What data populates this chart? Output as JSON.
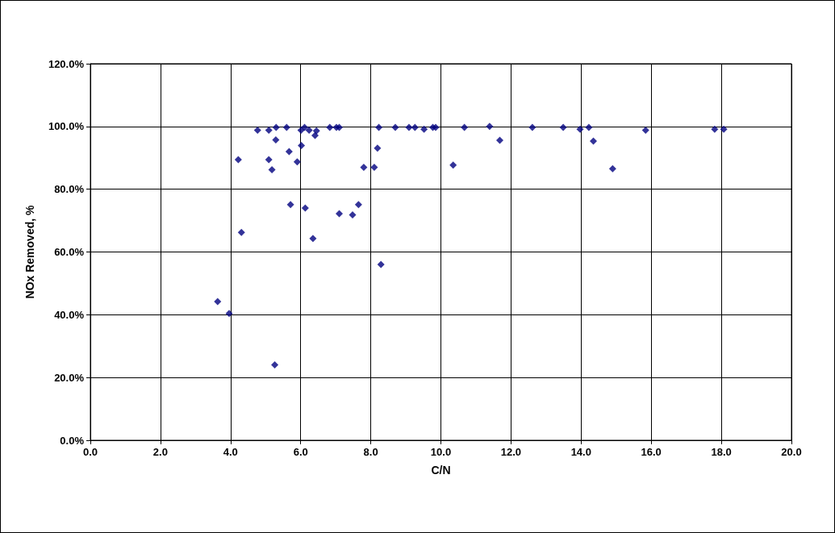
{
  "chart_data": {
    "type": "scatter",
    "xlabel": "C/N",
    "ylabel": "NOx Removed, %",
    "marker": "diamond",
    "grid": true,
    "xlim": [
      0,
      20
    ],
    "ylim": [
      0,
      120
    ],
    "xticks": [
      {
        "value": 0,
        "label": "0.0"
      },
      {
        "value": 2,
        "label": "2.0"
      },
      {
        "value": 4,
        "label": "4.0"
      },
      {
        "value": 6,
        "label": "6.0"
      },
      {
        "value": 8,
        "label": "8.0"
      },
      {
        "value": 10,
        "label": "10.0"
      },
      {
        "value": 12,
        "label": "12.0"
      },
      {
        "value": 14,
        "label": "14.0"
      },
      {
        "value": 16,
        "label": "16.0"
      },
      {
        "value": 18,
        "label": "18.0"
      },
      {
        "value": 20,
        "label": "20.0"
      }
    ],
    "yticks": [
      {
        "value": 0,
        "label": "0.0%"
      },
      {
        "value": 20,
        "label": "20.0%"
      },
      {
        "value": 40,
        "label": "40.0%"
      },
      {
        "value": 60,
        "label": "60.0%"
      },
      {
        "value": 80,
        "label": "80.0%"
      },
      {
        "value": 100,
        "label": "100.0%"
      },
      {
        "value": 120,
        "label": "120.0%"
      }
    ],
    "series": [
      {
        "color": "#000080",
        "x": [
          4.77,
          5.09,
          5.3,
          5.6,
          6.01,
          6.11,
          6.24,
          6.45,
          6.41,
          6.83,
          7.02,
          7.1,
          8.23,
          5.29,
          6.02,
          5.67,
          4.22,
          5.09,
          5.9,
          5.18,
          8.19,
          7.8,
          8.1,
          5.71,
          6.13,
          7.1,
          7.48,
          7.65,
          4.31,
          6.35,
          8.29,
          3.63,
          3.96,
          5.26,
          8.7,
          9.09,
          9.26,
          9.52,
          9.77,
          9.85,
          10.67,
          11.39,
          11.68,
          10.35,
          12.61,
          13.49,
          13.97,
          14.22,
          14.35,
          14.9,
          15.84,
          17.81,
          18.07
        ],
        "values": [
          98.8,
          98.8,
          99.7,
          99.7,
          98.8,
          99.7,
          98.8,
          98.6,
          97.1,
          99.7,
          99.7,
          99.7,
          99.7,
          95.7,
          93.9,
          92.0,
          89.4,
          89.4,
          88.7,
          86.2,
          93.1,
          87.0,
          87.0,
          75.1,
          74.0,
          72.2,
          71.8,
          75.1,
          66.2,
          64.3,
          56.0,
          44.2,
          40.4,
          24.0,
          99.7,
          99.7,
          99.7,
          99.1,
          99.7,
          99.7,
          99.7,
          100.0,
          95.6,
          87.7,
          99.7,
          99.7,
          99.1,
          99.7,
          95.3,
          86.5,
          98.8,
          99.1,
          99.1
        ]
      }
    ]
  }
}
